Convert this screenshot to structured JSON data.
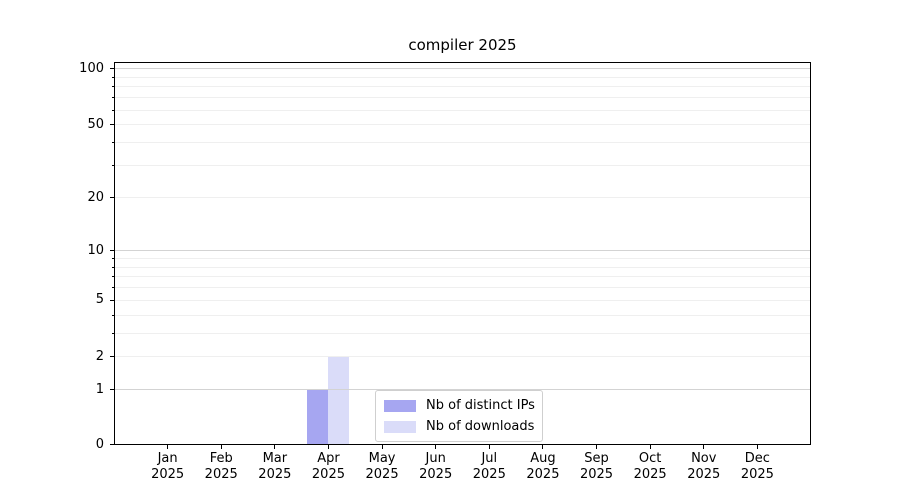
{
  "chart_data": {
    "type": "bar",
    "title": "compiler 2025",
    "categories": [
      "Jan 2025",
      "Feb 2025",
      "Mar 2025",
      "Apr 2025",
      "May 2025",
      "Jun 2025",
      "Jul 2025",
      "Aug 2025",
      "Sep 2025",
      "Oct 2025",
      "Nov 2025",
      "Dec 2025"
    ],
    "series": [
      {
        "name": "Nb of distinct IPs",
        "color": "#a6a6f1",
        "values": [
          0,
          0,
          0,
          1,
          0,
          0,
          0,
          0,
          0,
          0,
          0,
          0
        ]
      },
      {
        "name": "Nb of downloads",
        "color": "#dadcf9",
        "values": [
          0,
          0,
          0,
          2,
          0,
          0,
          0,
          0,
          0,
          0,
          0,
          0
        ]
      }
    ],
    "xlabel": "",
    "ylabel": "",
    "y_axis": {
      "scale": "log-like (0 baseline, log spacing above)",
      "tick_labels": [
        "0",
        "1",
        "2",
        "5",
        "10",
        "20",
        "50",
        "100"
      ],
      "tick_values": [
        0,
        1,
        2,
        5,
        10,
        20,
        50,
        100
      ],
      "minor_tick_values": [
        2,
        3,
        4,
        5,
        6,
        7,
        8,
        9,
        20,
        30,
        40,
        50,
        60,
        70,
        80,
        90
      ],
      "major_grid_values": [
        1,
        10,
        100
      ],
      "range": [
        0,
        108
      ]
    },
    "legend": {
      "position": "lower center",
      "entries": [
        "Nb of distinct IPs",
        "Nb of downloads"
      ]
    },
    "grid": "on",
    "colors": {
      "major_grid": "#d3d3d3",
      "minor_grid": "#efefef",
      "spine": "#000000",
      "background": "#ffffff",
      "text": "#000000"
    }
  }
}
